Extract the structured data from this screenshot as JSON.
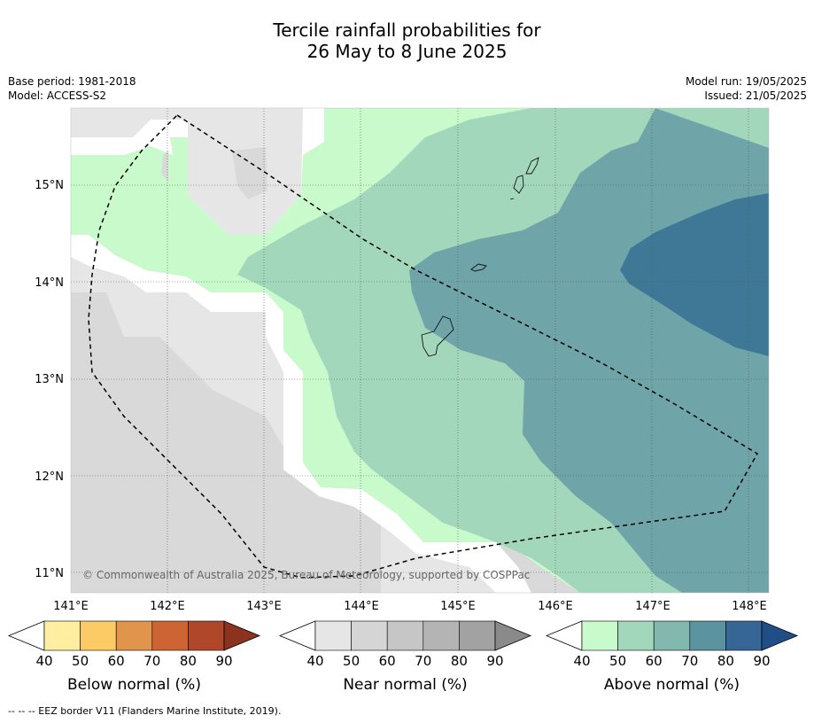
{
  "title_line1": "Tercile rainfall probabilities for",
  "title_line2": "26 May to 8 June 2025",
  "base_period": "Base period: 1981-2018",
  "model": "Model: ACCESS-S2",
  "model_run": "Model run: 19/05/2025",
  "issued": "Issued: 21/05/2025",
  "copyright": "© Commonwealth of Australia 2025, Bureau of Meteorology, supported by COSPPac",
  "lon_ticks": [
    "141°E",
    "142°E",
    "143°E",
    "144°E",
    "145°E",
    "146°E",
    "147°E",
    "148°E"
  ],
  "lat_ticks": [
    "15°N",
    "14°N",
    "13°N",
    "12°N",
    "11°N"
  ],
  "colorbars": [
    {
      "label": "Below normal (%)",
      "ticks": [
        "40",
        "50",
        "60",
        "70",
        "80",
        "90"
      ],
      "colors": [
        "#fdeea0",
        "#fdcb65",
        "#e0944c",
        "#cd6433",
        "#b0472b"
      ],
      "over": "#8c3320"
    },
    {
      "label": "Near normal (%)",
      "ticks": [
        "40",
        "50",
        "60",
        "70",
        "80",
        "90"
      ],
      "colors": [
        "#e6e6e6",
        "#d5d5d5",
        "#c6c6c6",
        "#b4b4b4",
        "#a2a2a2"
      ],
      "over": "#8a8a8a"
    },
    {
      "label": "Above normal (%)",
      "ticks": [
        "40",
        "50",
        "60",
        "70",
        "80",
        "90"
      ],
      "colors": [
        "#c8facb",
        "#a3d7bb",
        "#82b8ae",
        "#5b93a0",
        "#356696"
      ],
      "over": "#1f4f86"
    }
  ],
  "footer": "--  --  -- EEZ border V11 (Flanders Marine Institute, 2019)."
}
